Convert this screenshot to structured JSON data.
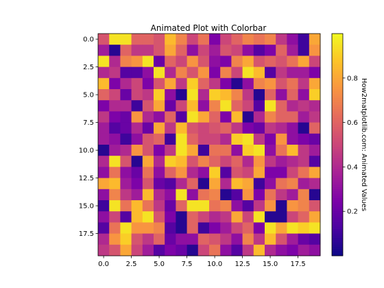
{
  "chart_data": {
    "type": "heatmap",
    "title": "Animated Plot with Colorbar",
    "colormap": "plasma",
    "colorbar_label": "How2matplotlib.com: Animated Values",
    "colorbar_ticks": [
      0.2,
      0.4,
      0.6,
      0.8
    ],
    "colorbar_range": [
      0.0,
      1.0
    ],
    "x_ticks": [
      0.0,
      2.5,
      5.0,
      7.5,
      10.0,
      12.5,
      15.0,
      17.5
    ],
    "y_ticks": [
      0.0,
      2.5,
      5.0,
      7.5,
      10.0,
      12.5,
      15.0,
      17.5
    ],
    "x_tick_labels": [
      "0.0",
      "2.5",
      "5.0",
      "7.5",
      "10.0",
      "12.5",
      "15.0",
      "17.5"
    ],
    "y_tick_labels": [
      "0.0",
      "2.5",
      "5.0",
      "7.5",
      "10.0",
      "12.5",
      "15.0",
      "17.5"
    ],
    "xlim": [
      -0.5,
      19.5
    ],
    "ylim": [
      19.5,
      -0.5
    ],
    "grid": false,
    "values": [
      [
        0.55,
        0.95,
        0.95,
        0.6,
        0.6,
        0.55,
        0.85,
        0.7,
        0.5,
        0.65,
        0.25,
        0.5,
        0.6,
        0.7,
        0.65,
        0.7,
        0.45,
        0.3,
        0.1,
        0.8
      ],
      [
        0.35,
        0.05,
        0.6,
        0.45,
        0.45,
        0.55,
        0.8,
        0.6,
        0.3,
        0.5,
        0.35,
        0.55,
        0.5,
        0.3,
        0.15,
        0.25,
        0.6,
        0.35,
        0.1,
        0.75
      ],
      [
        0.95,
        0.4,
        0.7,
        0.75,
        0.95,
        0.2,
        0.6,
        0.5,
        0.75,
        0.55,
        0.3,
        0.25,
        0.7,
        0.8,
        0.55,
        0.6,
        0.55,
        0.65,
        0.8,
        0.5
      ],
      [
        0.4,
        0.45,
        0.15,
        0.15,
        0.3,
        0.95,
        0.4,
        0.7,
        0.55,
        0.75,
        0.25,
        0.7,
        0.5,
        0.95,
        0.85,
        0.15,
        0.45,
        0.35,
        0.35,
        0.25
      ],
      [
        0.85,
        0.25,
        0.4,
        0.5,
        0.25,
        0.55,
        0.8,
        0.45,
        0.9,
        0.6,
        0.45,
        0.25,
        0.05,
        0.3,
        0.7,
        0.75,
        0.55,
        0.65,
        0.45,
        0.8
      ],
      [
        0.6,
        0.5,
        0.2,
        0.5,
        0.45,
        0.9,
        0.3,
        0.05,
        0.95,
        0.4,
        0.9,
        0.85,
        0.7,
        0.45,
        0.05,
        0.6,
        0.3,
        0.6,
        0.3,
        0.9
      ],
      [
        0.25,
        0.4,
        0.4,
        0.1,
        0.55,
        0.8,
        0.2,
        0.5,
        0.85,
        0.3,
        0.7,
        0.95,
        0.6,
        0.5,
        0.15,
        0.95,
        0.6,
        0.4,
        0.45,
        0.4
      ],
      [
        0.45,
        0.25,
        0.2,
        0.75,
        0.4,
        0.3,
        0.6,
        0.15,
        0.95,
        0.8,
        0.6,
        0.25,
        0.85,
        0.05,
        0.4,
        0.7,
        0.6,
        0.6,
        0.35,
        0.45
      ],
      [
        0.35,
        0.15,
        0.2,
        0.4,
        0.2,
        0.8,
        0.45,
        0.85,
        0.55,
        0.5,
        0.55,
        0.6,
        0.45,
        0.25,
        0.2,
        0.45,
        0.4,
        0.3,
        0.05,
        0.6
      ],
      [
        0.35,
        0.3,
        0.1,
        0.3,
        0.55,
        0.6,
        0.1,
        0.95,
        0.6,
        0.5,
        0.5,
        0.4,
        0.9,
        0.95,
        0.45,
        0.25,
        0.75,
        0.3,
        0.25,
        0.2
      ],
      [
        0.05,
        0.35,
        0.4,
        0.75,
        0.55,
        0.25,
        0.45,
        0.95,
        0.8,
        0.1,
        0.65,
        0.65,
        0.3,
        0.9,
        0.95,
        0.3,
        0.65,
        0.85,
        0.45,
        0.35
      ],
      [
        0.4,
        0.95,
        0.55,
        0.05,
        0.8,
        0.4,
        0.9,
        0.85,
        0.55,
        0.7,
        0.6,
        0.5,
        0.6,
        0.4,
        0.75,
        0.45,
        0.35,
        0.4,
        0.45,
        0.15
      ],
      [
        0.3,
        0.65,
        0.3,
        0.2,
        0.65,
        0.3,
        0.6,
        0.75,
        0.4,
        0.3,
        0.9,
        0.15,
        0.55,
        0.5,
        0.8,
        0.25,
        0.25,
        0.5,
        0.65,
        0.8
      ],
      [
        0.8,
        0.85,
        0.35,
        0.25,
        0.55,
        0.2,
        0.15,
        0.4,
        0.6,
        0.05,
        0.8,
        0.4,
        0.85,
        0.8,
        0.1,
        0.3,
        0.65,
        0.7,
        0.35,
        0.4
      ],
      [
        0.3,
        0.7,
        0.45,
        0.35,
        0.85,
        0.4,
        0.3,
        0.95,
        0.3,
        0.65,
        0.7,
        0.05,
        0.15,
        0.75,
        0.25,
        0.65,
        0.45,
        0.35,
        0.7,
        0.05
      ],
      [
        0.1,
        0.95,
        0.65,
        0.85,
        0.65,
        0.45,
        0.2,
        0.6,
        0.95,
        0.95,
        0.65,
        0.7,
        0.3,
        0.15,
        0.45,
        0.75,
        0.05,
        0.75,
        0.7,
        0.55
      ],
      [
        0.3,
        0.5,
        0.15,
        0.85,
        0.95,
        0.55,
        0.25,
        0.05,
        0.6,
        0.5,
        0.4,
        0.45,
        0.8,
        0.5,
        0.95,
        0.05,
        0.05,
        0.5,
        0.6,
        0.8
      ],
      [
        0.15,
        0.65,
        0.95,
        0.75,
        0.75,
        0.7,
        0.15,
        0.05,
        0.6,
        0.1,
        0.25,
        0.35,
        0.5,
        0.6,
        0.25,
        0.95,
        0.8,
        0.95,
        0.9,
        0.95
      ],
      [
        0.4,
        0.75,
        0.9,
        0.55,
        0.45,
        0.6,
        0.2,
        0.3,
        0.3,
        0.6,
        0.55,
        0.45,
        0.3,
        0.7,
        0.45,
        0.85,
        0.55,
        0.35,
        0.2,
        0.15
      ],
      [
        0.45,
        0.55,
        0.8,
        0.5,
        0.35,
        0.15,
        0.25,
        0.2,
        0.05,
        0.5,
        0.65,
        0.3,
        0.15,
        0.45,
        0.85,
        0.4,
        0.3,
        0.25,
        0.35,
        0.3
      ]
    ]
  }
}
